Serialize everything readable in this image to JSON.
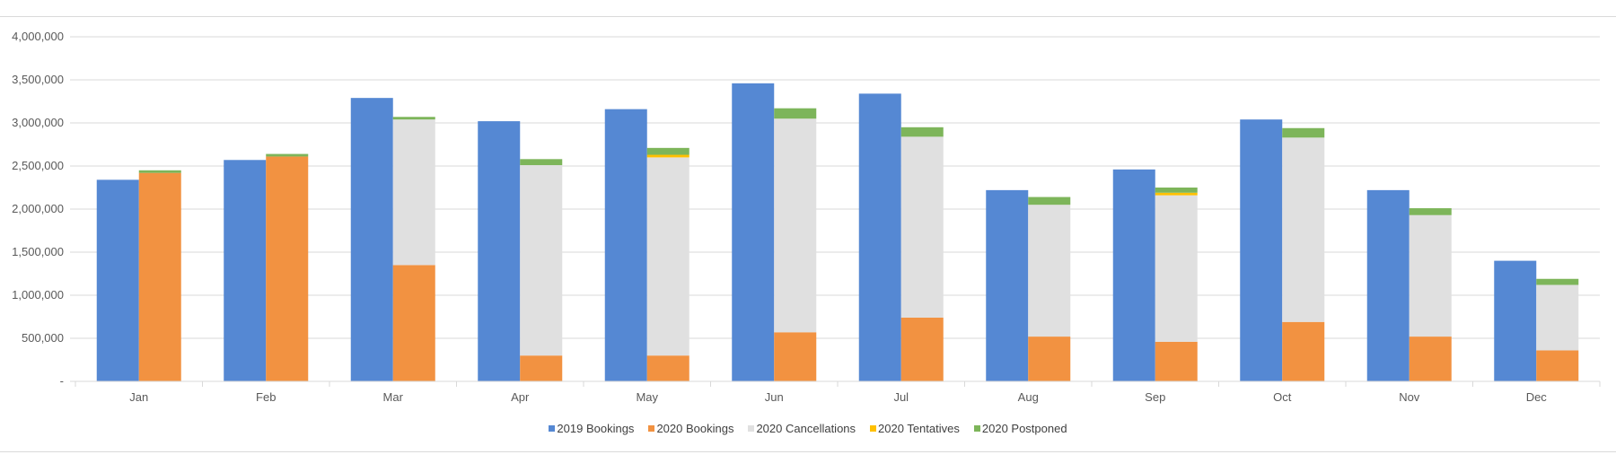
{
  "colors": {
    "bookings_2019": "#5588D3",
    "bookings_2020": "#F29241",
    "cancellations_2020": "#E0E0E0",
    "tentatives_2020": "#FFC000",
    "postponed_2020": "#7DB55A",
    "gridline": "#d9d9d9",
    "axis_text": "#595959"
  },
  "chart_data": {
    "type": "bar",
    "title": "",
    "xlabel": "",
    "ylabel": "",
    "ylim": [
      0,
      4000000
    ],
    "grid": true,
    "legend_position": "bottom",
    "categories": [
      "Jan",
      "Feb",
      "Mar",
      "Apr",
      "May",
      "Jun",
      "Jul",
      "Aug",
      "Sep",
      "Oct",
      "Nov",
      "Dec"
    ],
    "y_ticks": [
      0,
      500000,
      1000000,
      1500000,
      2000000,
      2500000,
      3000000,
      3500000,
      4000000
    ],
    "y_tick_labels": [
      "-",
      "500,000",
      "1,000,000",
      "1,500,000",
      "2,000,000",
      "2,500,000",
      "3,000,000",
      "3,500,000",
      "4,000,000"
    ],
    "series": [
      {
        "name": "2019 Bookings",
        "stack": "2019",
        "values": [
          2340000,
          2570000,
          3290000,
          3020000,
          3160000,
          3460000,
          3340000,
          2220000,
          2460000,
          3040000,
          2220000,
          1400000
        ]
      },
      {
        "name": "2020 Bookings",
        "stack": "2020",
        "values": [
          2420000,
          2610000,
          1350000,
          300000,
          300000,
          570000,
          740000,
          520000,
          460000,
          690000,
          520000,
          360000
        ]
      },
      {
        "name": "2020 Cancellations",
        "stack": "2020",
        "values": [
          0,
          0,
          1690000,
          2210000,
          2300000,
          2480000,
          2100000,
          1530000,
          1700000,
          2140000,
          1410000,
          760000
        ]
      },
      {
        "name": "2020 Tentatives",
        "stack": "2020",
        "values": [
          0,
          0,
          0,
          0,
          30000,
          0,
          0,
          0,
          30000,
          0,
          0,
          0
        ]
      },
      {
        "name": "2020 Postponed",
        "stack": "2020",
        "values": [
          30000,
          30000,
          30000,
          70000,
          80000,
          120000,
          110000,
          90000,
          60000,
          110000,
          80000,
          70000
        ]
      }
    ]
  }
}
